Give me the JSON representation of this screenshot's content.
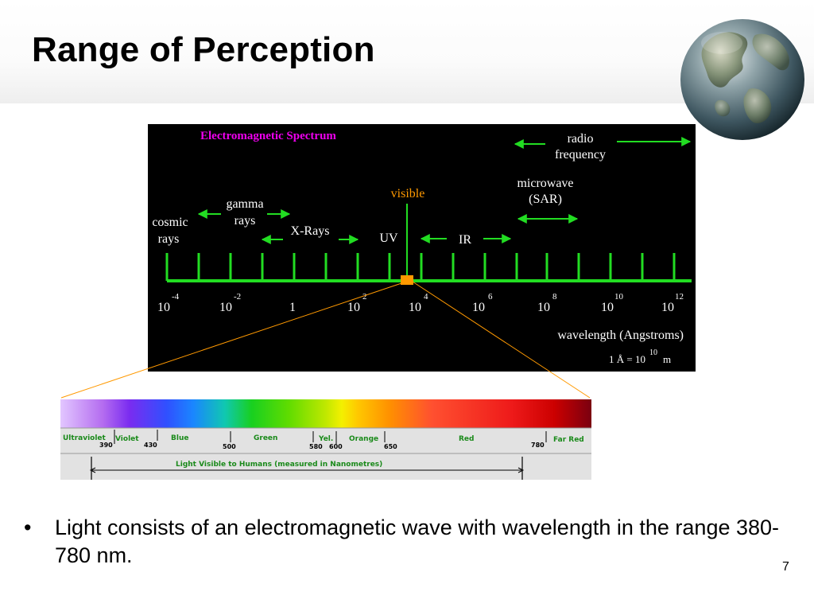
{
  "slide": {
    "title": "Range of Perception",
    "page_number": "7",
    "bullet_symbol": "•",
    "bullet": "Light consists of an electromagnetic wave with wavelength in the range 380-780 nm."
  },
  "em_spectrum": {
    "title": "Electromagnetic Spectrum",
    "bands": {
      "radio_1": "radio",
      "radio_2": "frequency",
      "microwave_1": "microwave",
      "microwave_2": "(SAR)",
      "visible": "visible",
      "gamma_1": "gamma",
      "gamma_2": "rays",
      "cosmic_1": "cosmic",
      "cosmic_2": "rays",
      "xrays": "X-Rays",
      "uv": "UV",
      "ir": "IR"
    },
    "scale_ticks": [
      {
        "base": "10",
        "exp": "-4"
      },
      {
        "base": "10",
        "exp": "-2"
      },
      {
        "base": "1",
        "exp": ""
      },
      {
        "base": "10",
        "exp": "2"
      },
      {
        "base": "10",
        "exp": "4"
      },
      {
        "base": "10",
        "exp": "6"
      },
      {
        "base": "10",
        "exp": "8"
      },
      {
        "base": "10",
        "exp": "10"
      },
      {
        "base": "10",
        "exp": "12"
      }
    ],
    "axis_label": "wavelength (Angstroms)",
    "unit_note": {
      "prefix": "1 Å = 10",
      "exp": "10",
      "suffix": "m"
    },
    "colors": {
      "title": "#ee00ee",
      "visible": "#ff9900",
      "line": "#22dd22",
      "marker": "#ff9900",
      "text": "#ffffff"
    }
  },
  "visible_spectrum": {
    "regions": [
      "Ultraviolet",
      "Violet",
      "Blue",
      "Green",
      "Yel.",
      "Orange",
      "Red",
      "Far Red"
    ],
    "ticks": [
      "390",
      "430",
      "500",
      "580",
      "600",
      "650",
      "780"
    ],
    "caption": "Light Visible to Humans (measured in Nanometres)"
  }
}
